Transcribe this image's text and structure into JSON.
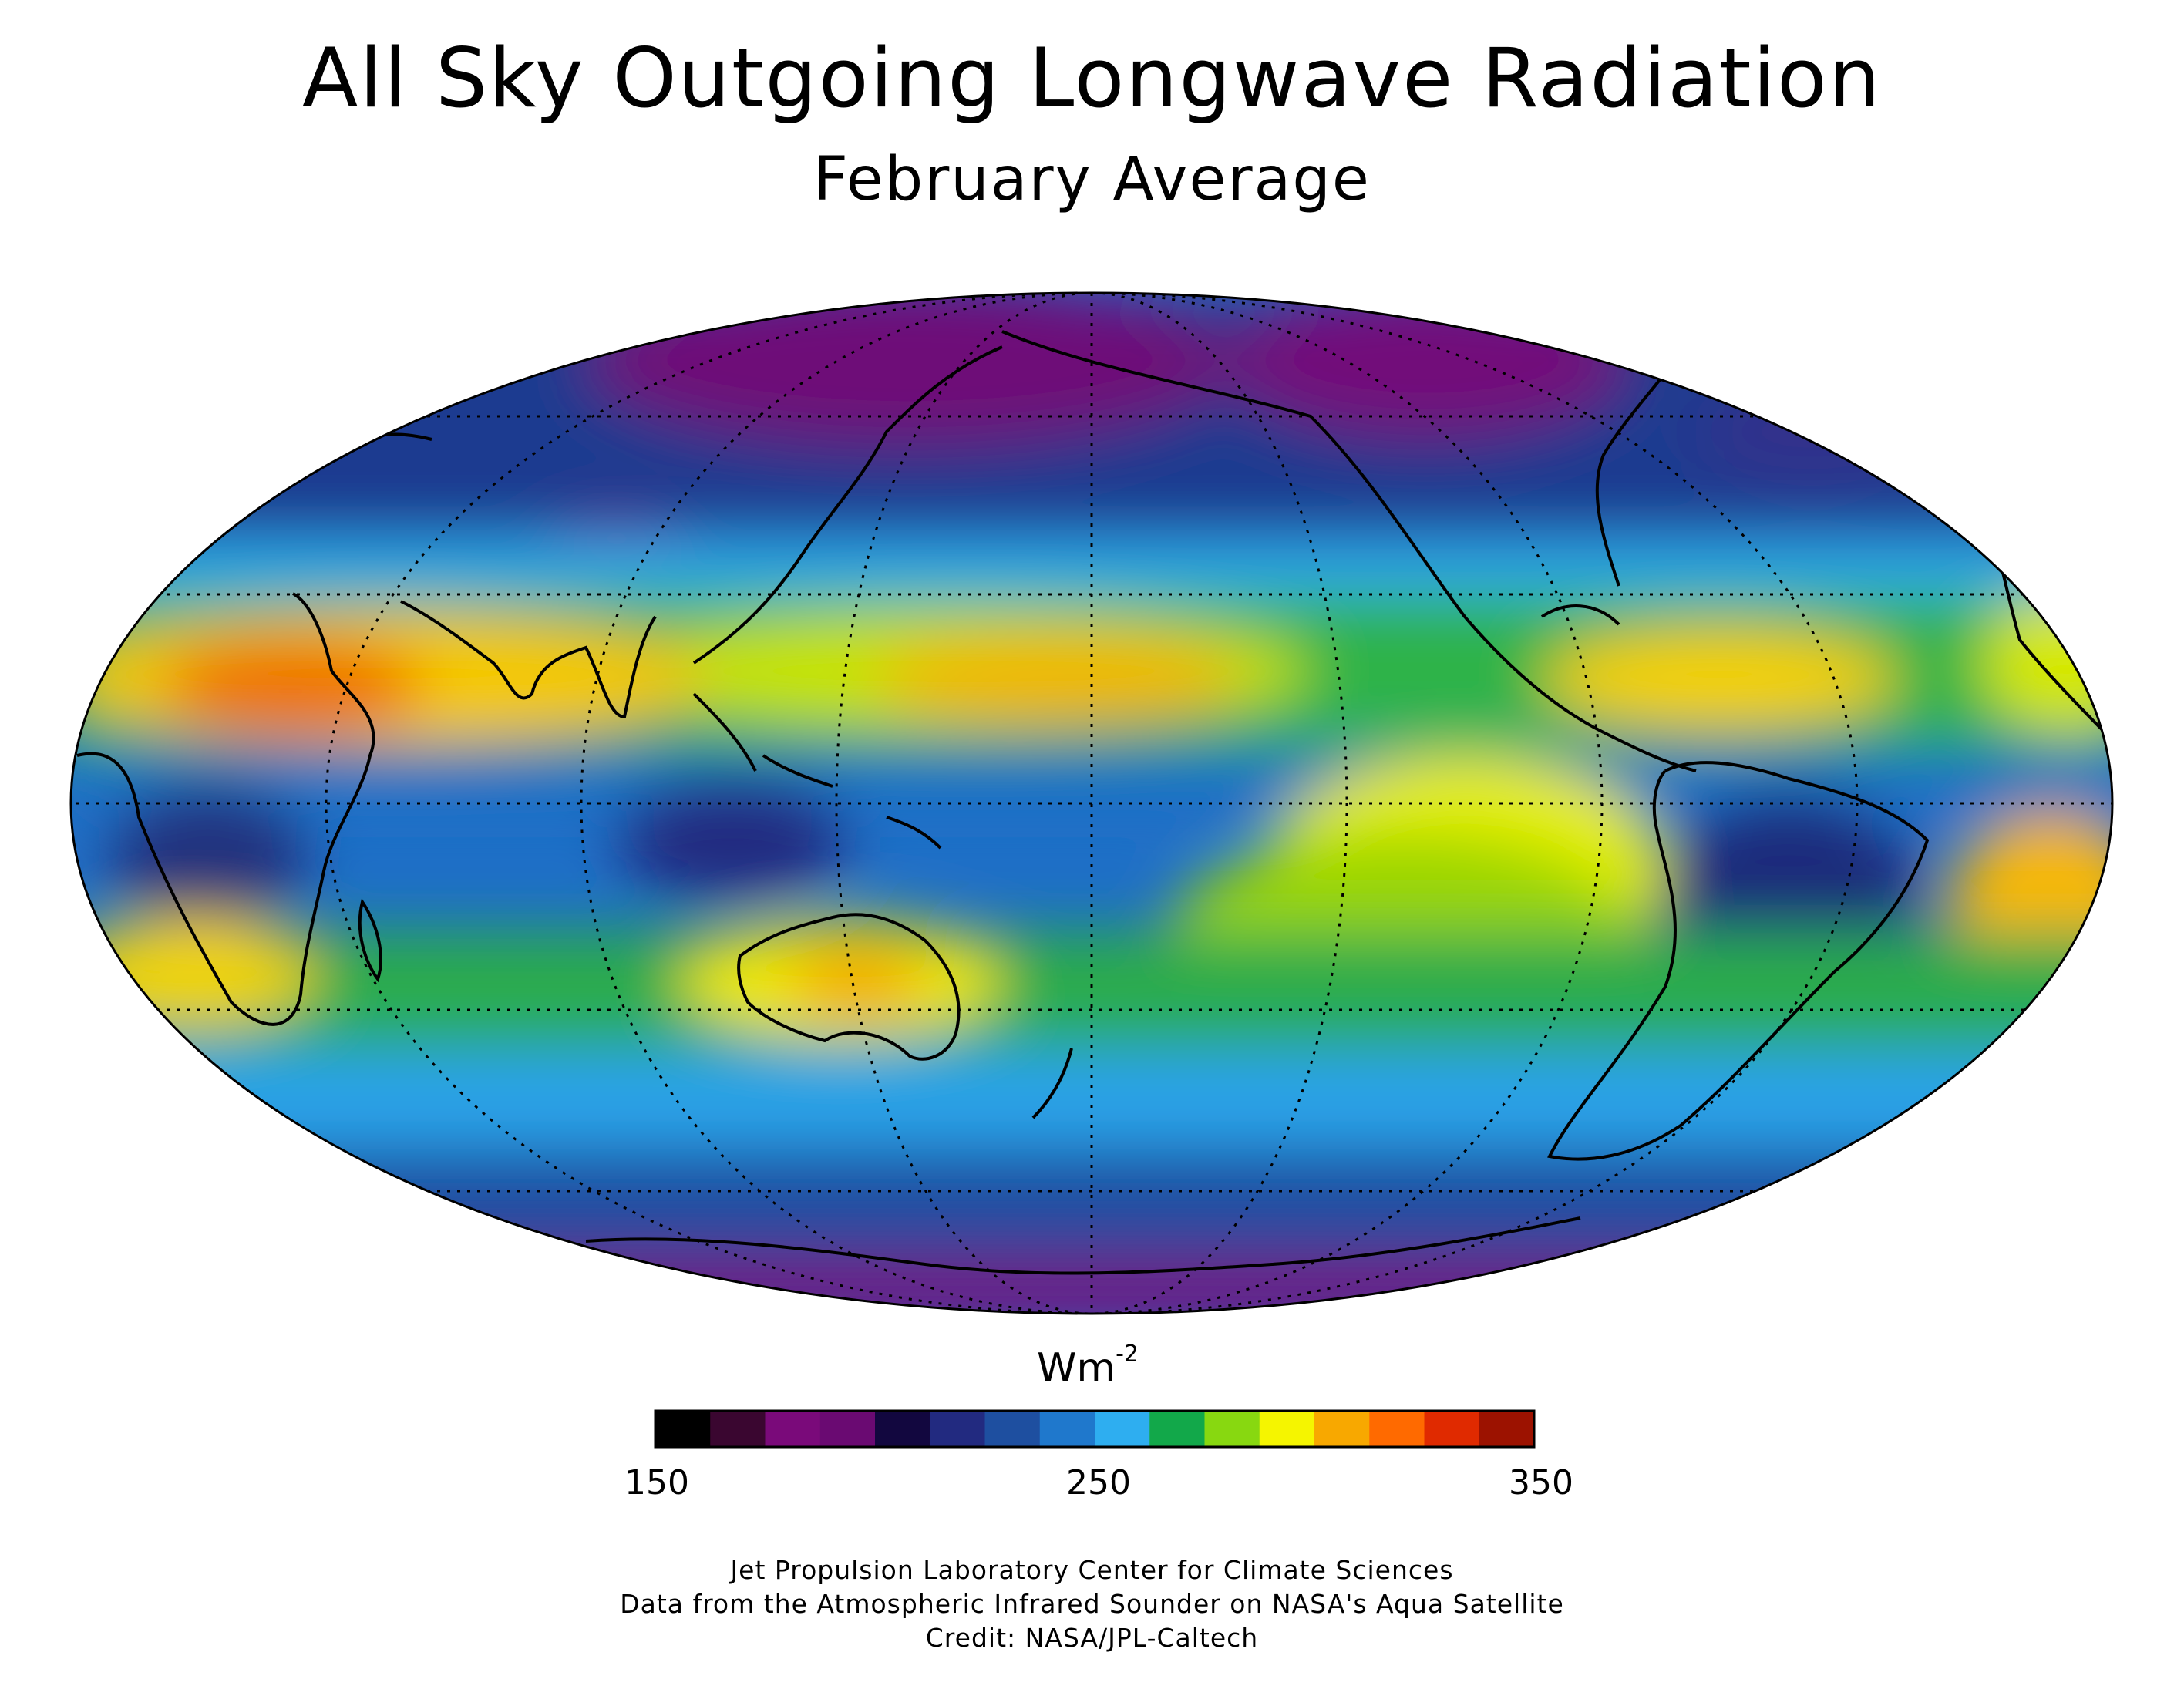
{
  "title": "All Sky Outgoing Longwave Radiation",
  "subtitle": "February Average",
  "colorbar": {
    "units_base": "Wm",
    "units_exp": "-2",
    "min_label": "150",
    "mid_label": "250",
    "max_label": "350",
    "range": [
      150,
      350
    ],
    "colors": [
      "#000000",
      "#3a0630",
      "#7a0a7a",
      "#6a0a72",
      "#12073f",
      "#222a80",
      "#1e4fa0",
      "#1f78cc",
      "#2eaef0",
      "#12a84a",
      "#88d810",
      "#f5f500",
      "#f8a800",
      "#ff6a00",
      "#e02a00",
      "#9c1200"
    ]
  },
  "credits": {
    "line1": "Jet Propulsion Laboratory Center for Climate Sciences",
    "line2": "Data from the Atmospheric Infrared Sounder on NASA's Aqua Satellite",
    "line3": "Credit: NASA/JPL-Caltech"
  },
  "map": {
    "projection": "Mollweide",
    "graticule": "dotted",
    "coastlines": "black"
  }
}
